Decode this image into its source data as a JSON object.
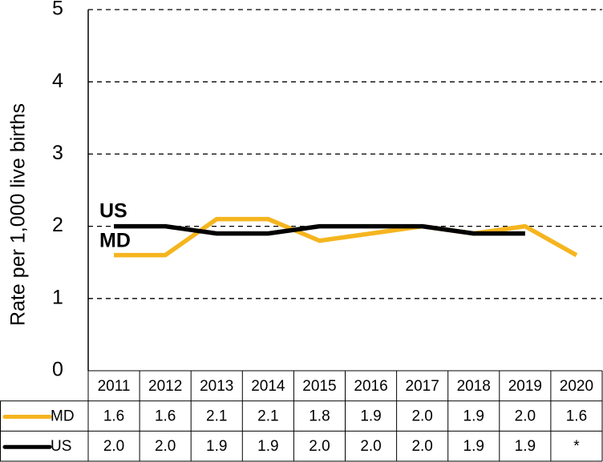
{
  "chart_data": {
    "type": "line",
    "y_axis_label": "Rate per 1,000 live births",
    "categories": [
      "2011",
      "2012",
      "2013",
      "2014",
      "2015",
      "2016",
      "2017",
      "2018",
      "2019",
      "2020"
    ],
    "series": [
      {
        "name": "MD",
        "color": "#f5b51f",
        "values": [
          1.6,
          1.6,
          2.1,
          2.1,
          1.8,
          1.9,
          2.0,
          1.9,
          2.0,
          1.6
        ],
        "value_labels": [
          "1.6",
          "1.6",
          "2.1",
          "2.1",
          "1.8",
          "1.9",
          "2.0",
          "1.9",
          "2.0",
          "1.6"
        ]
      },
      {
        "name": "US",
        "color": "#000000",
        "values": [
          2.0,
          2.0,
          1.9,
          1.9,
          2.0,
          2.0,
          2.0,
          1.9,
          1.9,
          null
        ],
        "value_labels": [
          "2.0",
          "2.0",
          "1.9",
          "1.9",
          "2.0",
          "2.0",
          "2.0",
          "1.9",
          "1.9",
          "*"
        ]
      }
    ],
    "annotations": [
      "US",
      "MD"
    ],
    "ylim": [
      0,
      5
    ],
    "yticks": [
      0,
      1,
      2,
      3,
      4,
      5
    ],
    "grid": true
  }
}
